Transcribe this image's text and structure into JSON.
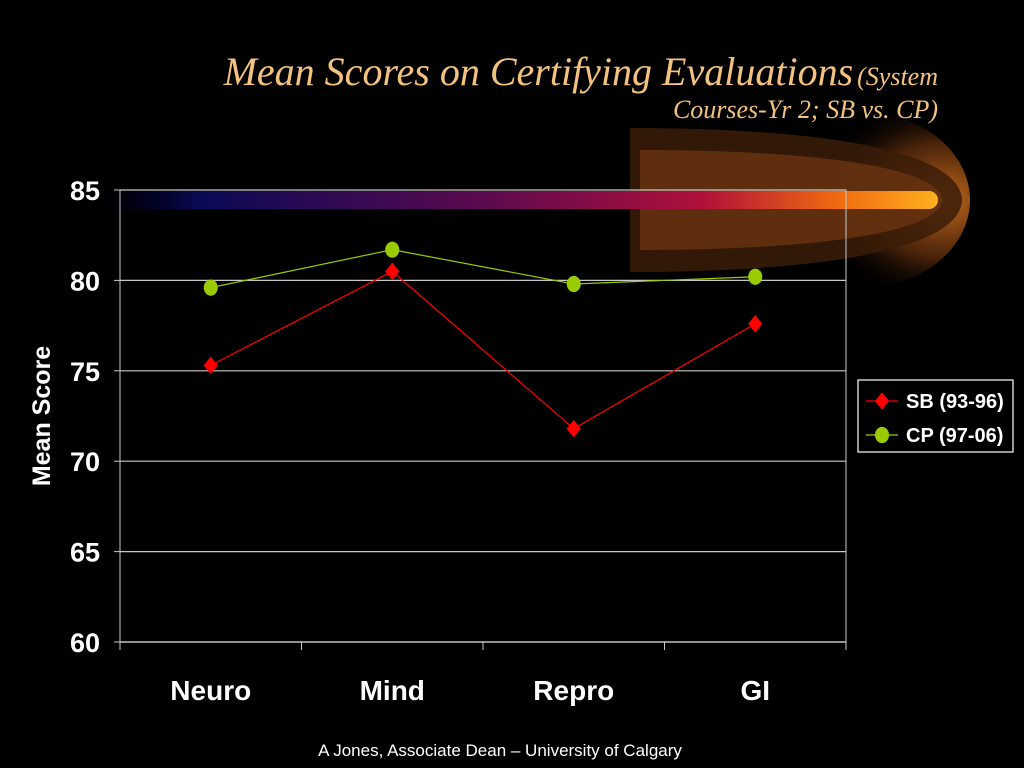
{
  "title": {
    "main": "Mean Scores on Certifying Evaluations",
    "sub_part1": "(System",
    "sub_part2": "Courses-Yr 2; SB vs. CP)"
  },
  "footer": "A Jones, Associate Dean – University of Calgary",
  "colors": {
    "background": "#000000",
    "title": "#F4C27F",
    "sb_series": "#FF0000",
    "cp_series": "#99CC00",
    "grid": "#C8C8C8"
  },
  "chart_data": {
    "type": "line",
    "categories": [
      "Neuro",
      "Mind",
      "Repro",
      "GI"
    ],
    "ylabel": "Mean Score",
    "xlabel": "",
    "ylim": [
      60,
      85
    ],
    "yticks": [
      60,
      65,
      70,
      75,
      80,
      85
    ],
    "grid": true,
    "legend_position": "right",
    "series": [
      {
        "name": "SB (93-96)",
        "values": [
          75.3,
          80.5,
          71.8,
          77.6
        ],
        "color": "#FF0000",
        "marker": "diamond"
      },
      {
        "name": "CP (97-06)",
        "values": [
          79.6,
          81.7,
          79.8,
          80.2
        ],
        "color": "#99CC00",
        "marker": "circle"
      }
    ]
  }
}
